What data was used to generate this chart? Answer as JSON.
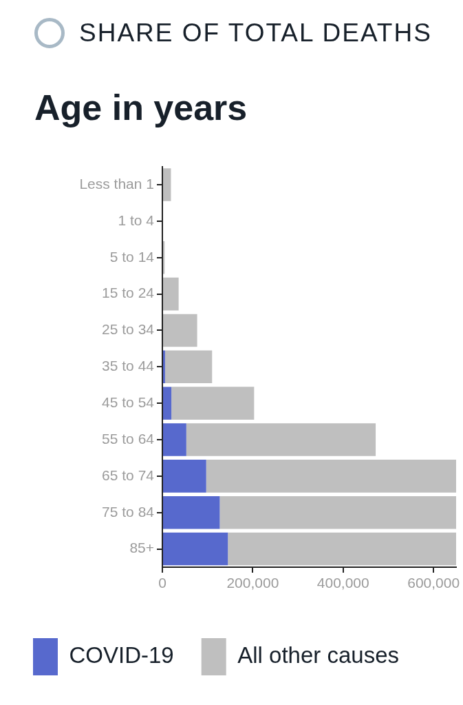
{
  "chart_data": {
    "type": "bar",
    "orientation": "horizontal",
    "stacked": true,
    "title": "SHARE OF TOTAL DEATHS",
    "ylabel": "Age in years",
    "categories": [
      "Less than 1",
      "1 to 4",
      "5 to 14",
      "15 to 24",
      "25 to 34",
      "35 to 44",
      "45 to 54",
      "55 to 64",
      "65 to 74",
      "75 to 84",
      "85+"
    ],
    "series": [
      {
        "name": "COVID-19",
        "color": "#5769cd",
        "values": [
          0,
          0,
          0,
          0,
          0,
          6000,
          20000,
          53000,
          97000,
          127000,
          145000
        ]
      },
      {
        "name": "All other causes",
        "color": "#bfbfbf",
        "values": [
          19000,
          0,
          5000,
          36000,
          77000,
          104000,
          183000,
          419000,
          553000,
          523000,
          505000
        ]
      }
    ],
    "xlim": [
      0,
      650000
    ],
    "xticks": [
      0,
      {
        "value": 200000,
        "label": "200,000"
      },
      {
        "value": 400000,
        "label": "400,000"
      },
      {
        "value": 600000,
        "label": "600,000"
      }
    ],
    "legend": "bottom left"
  }
}
